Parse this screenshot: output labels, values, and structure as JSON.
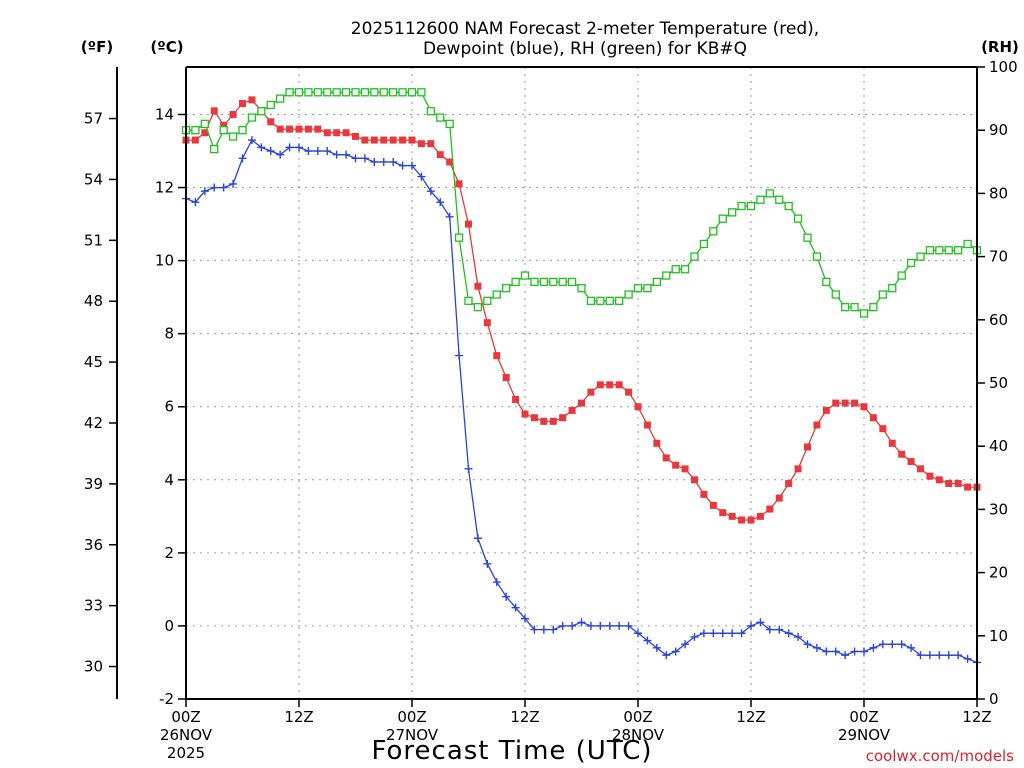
{
  "chart_data": {
    "type": "line",
    "title_line1": "2025112600 NAM Forecast 2-meter Temperature (red),",
    "title_line2": "Dewpoint (blue), RH (green) for KB#Q",
    "xlabel": "Forecast Time (UTC)",
    "credit": "coolwx.com/models",
    "unit_labels": {
      "f": "(ºF)",
      "c": "(ºC)",
      "rh": "(RH)"
    },
    "x_ticks": [
      {
        "h": 0,
        "lines": [
          "00Z",
          "26NOV",
          "2025"
        ]
      },
      {
        "h": 12,
        "lines": [
          "12Z"
        ]
      },
      {
        "h": 24,
        "lines": [
          "00Z",
          "27NOV"
        ]
      },
      {
        "h": 36,
        "lines": [
          "12Z"
        ]
      },
      {
        "h": 48,
        "lines": [
          "00Z",
          "28NOV"
        ]
      },
      {
        "h": 60,
        "lines": [
          "12Z"
        ]
      },
      {
        "h": 72,
        "lines": [
          "00Z",
          "29NOV"
        ]
      },
      {
        "h": 84,
        "lines": [
          "12Z"
        ]
      }
    ],
    "xlim": [
      0,
      84
    ],
    "ylim_c": [
      -2,
      15.3
    ],
    "ylim_rh": [
      0,
      100
    ],
    "c_ticks": [
      "-2",
      "0",
      "2",
      "4",
      "6",
      "8",
      "10",
      "12",
      "14"
    ],
    "f_ticks": [
      "30",
      "33",
      "36",
      "39",
      "42",
      "45",
      "48",
      "51",
      "54",
      "57"
    ],
    "rh_ticks": [
      "0",
      "10",
      "20",
      "30",
      "40",
      "50",
      "60",
      "70",
      "80",
      "90",
      "100"
    ],
    "series": [
      {
        "name": "Temperature",
        "units": "C",
        "color": "#e8383d",
        "marker": "filled-square",
        "values": [
          13.3,
          13.3,
          13.5,
          14.1,
          13.7,
          14.0,
          14.3,
          14.4,
          14.1,
          13.8,
          13.6,
          13.6,
          13.6,
          13.6,
          13.6,
          13.5,
          13.5,
          13.5,
          13.4,
          13.3,
          13.3,
          13.3,
          13.3,
          13.3,
          13.3,
          13.2,
          13.2,
          12.9,
          12.7,
          12.1,
          11.0,
          9.3,
          8.3,
          7.4,
          6.8,
          6.2,
          5.8,
          5.7,
          5.6,
          5.6,
          5.7,
          5.9,
          6.1,
          6.4,
          6.6,
          6.6,
          6.6,
          6.4,
          6.0,
          5.5,
          5.0,
          4.6,
          4.4,
          4.3,
          4.0,
          3.6,
          3.3,
          3.1,
          3.0,
          2.9,
          2.9,
          3.0,
          3.2,
          3.5,
          3.9,
          4.3,
          4.9,
          5.5,
          5.9,
          6.1,
          6.1,
          6.1,
          6.0,
          5.7,
          5.4,
          5.0,
          4.7,
          4.5,
          4.3,
          4.1,
          4.0,
          3.9,
          3.9,
          3.8,
          3.8
        ]
      },
      {
        "name": "Dewpoint",
        "units": "C",
        "color": "#2a45d8",
        "marker": "plus",
        "values": [
          11.7,
          11.6,
          11.9,
          12.0,
          12.0,
          12.1,
          12.8,
          13.3,
          13.1,
          13.0,
          12.9,
          13.1,
          13.1,
          13.0,
          13.0,
          13.0,
          12.9,
          12.9,
          12.8,
          12.8,
          12.7,
          12.7,
          12.7,
          12.6,
          12.6,
          12.3,
          11.9,
          11.6,
          11.2,
          7.4,
          4.3,
          2.4,
          1.7,
          1.2,
          0.8,
          0.5,
          0.2,
          -0.1,
          -0.1,
          -0.1,
          0.0,
          0.0,
          0.1,
          0.0,
          0.0,
          0.0,
          0.0,
          0.0,
          -0.2,
          -0.4,
          -0.6,
          -0.8,
          -0.7,
          -0.5,
          -0.3,
          -0.2,
          -0.2,
          -0.2,
          -0.2,
          -0.2,
          0.0,
          0.1,
          -0.1,
          -0.1,
          -0.2,
          -0.3,
          -0.5,
          -0.6,
          -0.7,
          -0.7,
          -0.8,
          -0.7,
          -0.7,
          -0.6,
          -0.5,
          -0.5,
          -0.5,
          -0.6,
          -0.8,
          -0.8,
          -0.8,
          -0.8,
          -0.8,
          -0.9,
          -1.0
        ]
      },
      {
        "name": "RH",
        "units": "%",
        "color": "#20c020",
        "marker": "open-square",
        "values": [
          90,
          90,
          91,
          87,
          90,
          89,
          90,
          92,
          93,
          94,
          95,
          96,
          96,
          96,
          96,
          96,
          96,
          96,
          96,
          96,
          96,
          96,
          96,
          96,
          96,
          96,
          93,
          92,
          91,
          73,
          63,
          62,
          63,
          64,
          65,
          66,
          67,
          66,
          66,
          66,
          66,
          66,
          65,
          63,
          63,
          63,
          63,
          64,
          65,
          65,
          66,
          67,
          68,
          68,
          70,
          72,
          74,
          76,
          77,
          78,
          78,
          79,
          80,
          79,
          78,
          76,
          73,
          70,
          66,
          64,
          62,
          62,
          61,
          62,
          64,
          65,
          67,
          69,
          70,
          71,
          71,
          71,
          71,
          72,
          71
        ]
      }
    ]
  }
}
